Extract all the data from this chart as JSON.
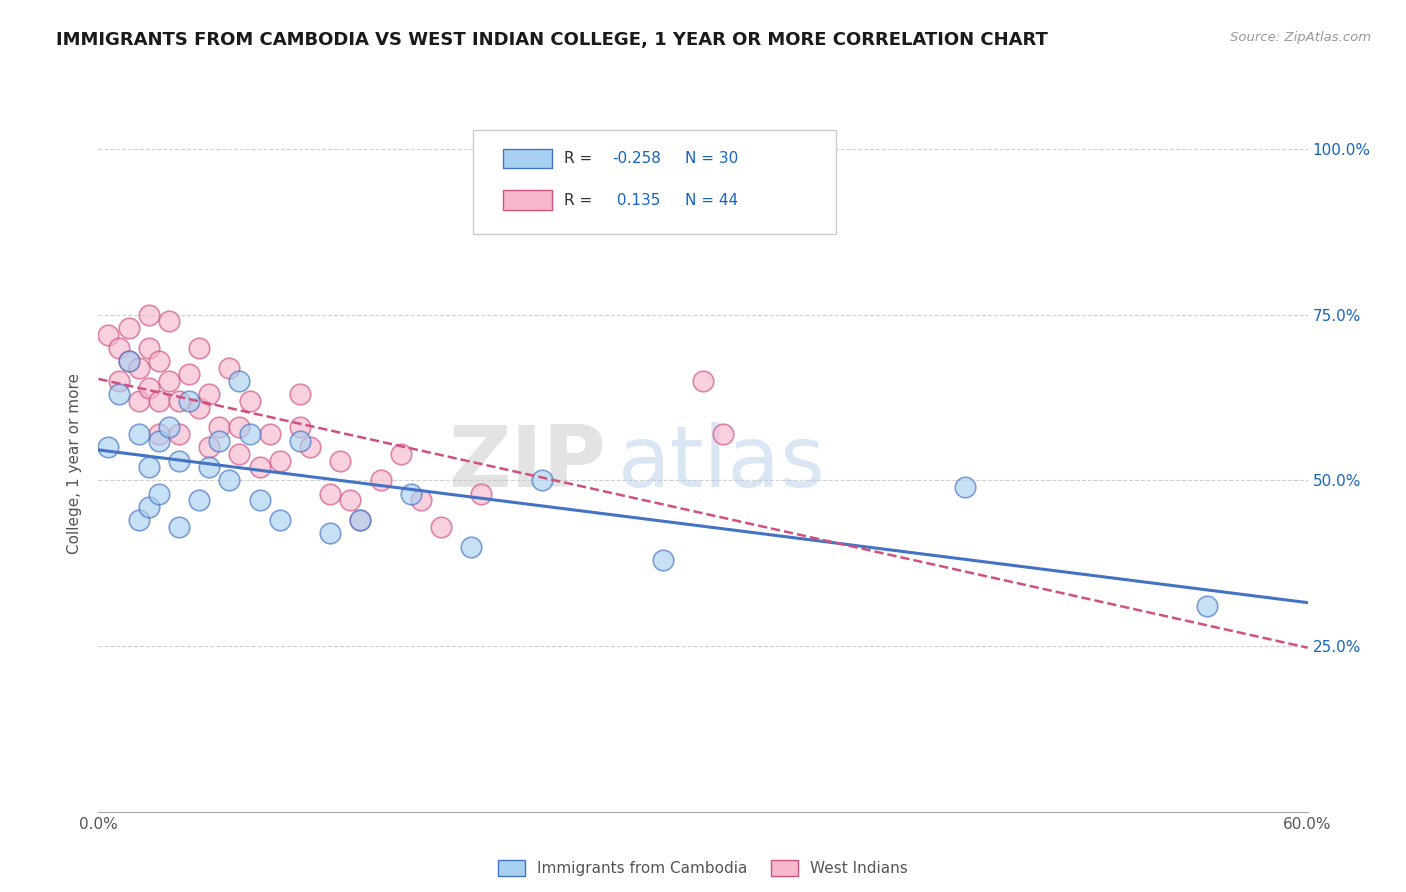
{
  "title": "IMMIGRANTS FROM CAMBODIA VS WEST INDIAN COLLEGE, 1 YEAR OR MORE CORRELATION CHART",
  "source_text": "Source: ZipAtlas.com",
  "xlabel_blue": "Immigrants from Cambodia",
  "xlabel_pink": "West Indians",
  "ylabel": "College, 1 year or more",
  "r_blue": -0.258,
  "n_blue": 30,
  "r_pink": 0.135,
  "n_pink": 44,
  "xlim": [
    0.0,
    0.6
  ],
  "ylim": [
    0.0,
    1.05
  ],
  "yticks": [
    0.25,
    0.5,
    0.75,
    1.0
  ],
  "ytick_labels": [
    "25.0%",
    "50.0%",
    "75.0%",
    "100.0%"
  ],
  "xticks": [
    0.0,
    0.1,
    0.2,
    0.3,
    0.4,
    0.5,
    0.6
  ],
  "xtick_labels": [
    "0.0%",
    "",
    "",
    "",
    "",
    "",
    "60.0%"
  ],
  "color_blue": "#a8d0f0",
  "color_pink": "#f7b8cc",
  "line_color_blue": "#4472c4",
  "line_color_pink": "#d05080",
  "background_color": "#ffffff",
  "watermark_zip": "ZIP",
  "watermark_atlas": "atlas",
  "blue_scatter_x": [
    0.005,
    0.01,
    0.015,
    0.02,
    0.02,
    0.025,
    0.025,
    0.03,
    0.03,
    0.035,
    0.04,
    0.04,
    0.045,
    0.05,
    0.055,
    0.06,
    0.065,
    0.07,
    0.075,
    0.08,
    0.09,
    0.1,
    0.115,
    0.13,
    0.155,
    0.185,
    0.22,
    0.28,
    0.43,
    0.55
  ],
  "blue_scatter_y": [
    0.55,
    0.63,
    0.68,
    0.57,
    0.44,
    0.52,
    0.46,
    0.56,
    0.48,
    0.58,
    0.53,
    0.43,
    0.62,
    0.47,
    0.52,
    0.56,
    0.5,
    0.65,
    0.57,
    0.47,
    0.44,
    0.56,
    0.42,
    0.44,
    0.48,
    0.4,
    0.5,
    0.38,
    0.49,
    0.31
  ],
  "pink_scatter_x": [
    0.005,
    0.01,
    0.01,
    0.015,
    0.015,
    0.02,
    0.02,
    0.025,
    0.025,
    0.025,
    0.03,
    0.03,
    0.03,
    0.035,
    0.035,
    0.04,
    0.04,
    0.045,
    0.05,
    0.05,
    0.055,
    0.055,
    0.06,
    0.065,
    0.07,
    0.07,
    0.075,
    0.08,
    0.085,
    0.09,
    0.1,
    0.1,
    0.105,
    0.115,
    0.12,
    0.125,
    0.13,
    0.14,
    0.15,
    0.16,
    0.17,
    0.19,
    0.3,
    0.31
  ],
  "pink_scatter_y": [
    0.72,
    0.7,
    0.65,
    0.73,
    0.68,
    0.67,
    0.62,
    0.75,
    0.7,
    0.64,
    0.68,
    0.62,
    0.57,
    0.74,
    0.65,
    0.62,
    0.57,
    0.66,
    0.7,
    0.61,
    0.55,
    0.63,
    0.58,
    0.67,
    0.58,
    0.54,
    0.62,
    0.52,
    0.57,
    0.53,
    0.58,
    0.63,
    0.55,
    0.48,
    0.53,
    0.47,
    0.44,
    0.5,
    0.54,
    0.47,
    0.43,
    0.48,
    0.65,
    0.57
  ],
  "grid_color": "#cccccc",
  "title_color": "#1a1a1a",
  "title_fontsize": 13,
  "axis_label_color": "#555555",
  "legend_r_color": "#1565c0",
  "legend_n_color": "#1565c0"
}
